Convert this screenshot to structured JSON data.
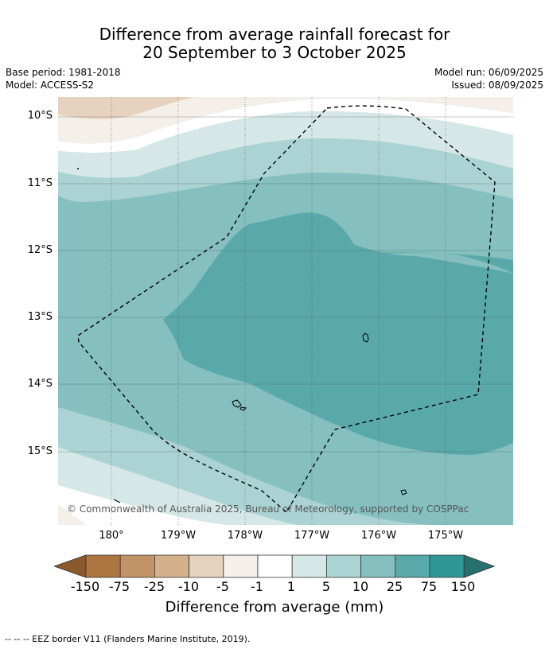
{
  "title": {
    "line1": "Difference from average rainfall forecast for",
    "line2": "20 September to 3 October 2025"
  },
  "meta": {
    "base_period": "Base period: 1981-2018",
    "model": "Model: ACCESS-S2",
    "model_run": "Model run: 06/09/2025",
    "issued": "Issued: 08/09/2025"
  },
  "map": {
    "lat_labels": [
      "10°S",
      "11°S",
      "12°S",
      "13°S",
      "14°S",
      "15°S"
    ],
    "lon_labels": [
      "180°",
      "179°W",
      "178°W",
      "177°W",
      "176°W",
      "175°W"
    ],
    "copyright": "© Commonwealth of Australia 2025, Bureau of Meteorology, supported by COSPPac",
    "border_style": "dashed",
    "gridlines": true
  },
  "colorbar": {
    "label": "Difference from average (mm)",
    "ticks": [
      "-150",
      "-75",
      "-25",
      "-10",
      "-5",
      "-1",
      "1",
      "5",
      "10",
      "25",
      "75",
      "150"
    ],
    "colors": [
      "#8a5a2b",
      "#ad7640",
      "#c29366",
      "#d4b08b",
      "#e6d2bf",
      "#f4efe9",
      "#ffffff",
      "#d5e8e7",
      "#acd3d3",
      "#85bfbf",
      "#5aa9aa",
      "#2f9896",
      "#26706e"
    ]
  },
  "footnote": "--  --  -- EEZ border V11 (Flanders Marine Institute, 2019)."
}
